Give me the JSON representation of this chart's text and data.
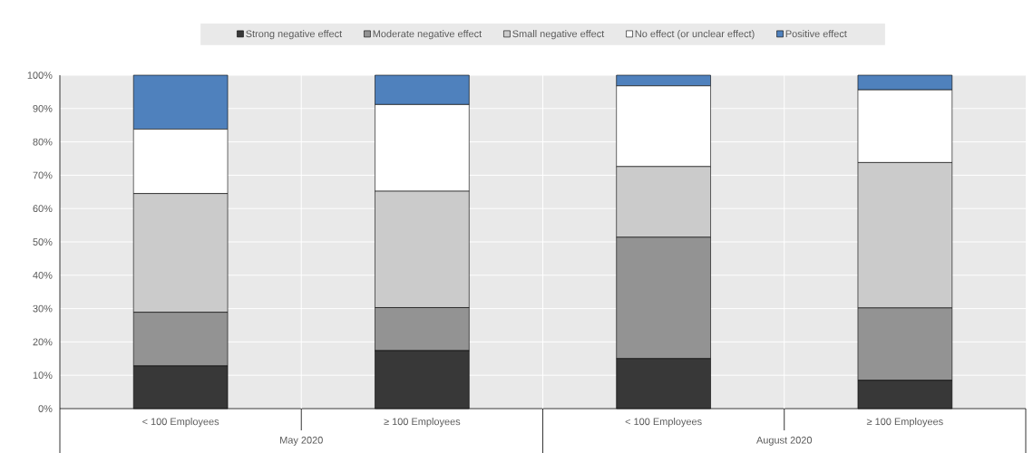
{
  "chart_data": {
    "type": "bar",
    "stacked": true,
    "categories": [
      "< 100 Employees",
      "≥ 100 Employees",
      "< 100 Employees",
      "≥ 100 Employees"
    ],
    "series": [
      {
        "name": "Strong negative effect",
        "color": "#383838",
        "values": [
          12.8,
          17.4,
          15.0,
          8.5
        ]
      },
      {
        "name": "Moderate negative effect",
        "color": "#939393",
        "values": [
          16.1,
          12.9,
          36.4,
          21.7
        ]
      },
      {
        "name": "Small negative effect",
        "color": "#cbcbcb",
        "values": [
          35.6,
          34.9,
          21.2,
          43.6
        ]
      },
      {
        "name": "No effect (or unclear effect)",
        "color": "#ffffff",
        "values": [
          19.3,
          26.0,
          24.2,
          21.8
        ]
      },
      {
        "name": "Positive effect",
        "color": "#4f81bd",
        "values": [
          16.2,
          8.8,
          3.2,
          4.4
        ]
      }
    ],
    "ylim": [
      0,
      100
    ],
    "yticks": [
      {
        "value": 0,
        "label": "0%"
      },
      {
        "value": 10,
        "label": "10%"
      },
      {
        "value": 20,
        "label": "20%"
      },
      {
        "value": 30,
        "label": "30%"
      },
      {
        "value": 40,
        "label": "40%"
      },
      {
        "value": 50,
        "label": "50%"
      },
      {
        "value": 60,
        "label": "60%"
      },
      {
        "value": 70,
        "label": "70%"
      },
      {
        "value": 80,
        "label": "80%"
      },
      {
        "value": 90,
        "label": "90%"
      },
      {
        "value": 100,
        "label": "100%"
      }
    ],
    "grid": true,
    "legend": "top",
    "annotations": [
      "May 2020",
      "August 2020"
    ]
  }
}
